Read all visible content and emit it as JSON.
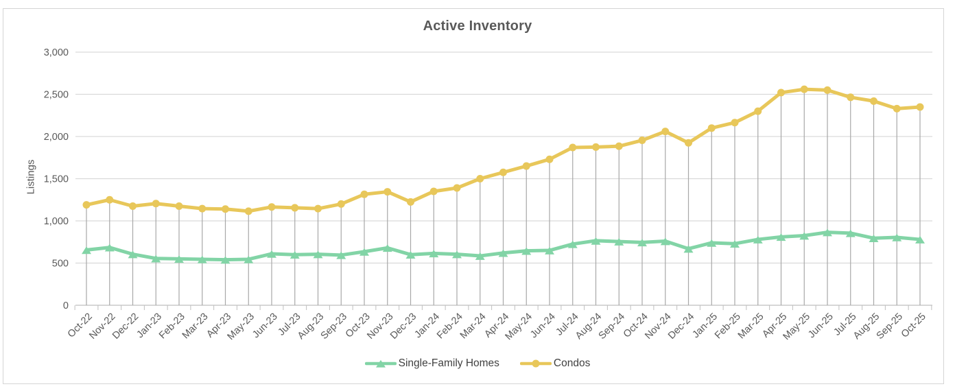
{
  "title": "Active Inventory",
  "colors": {
    "single_family": "#82d4a6",
    "condos": "#e8c75a",
    "gridline": "#d9d9d9",
    "axis_line": "#bfbfbf",
    "drop_line": "#a8a8a8",
    "tick_text": "#595959",
    "title_text": "#595959",
    "legend_text": "#404040",
    "frame_border": "#d4d4d4"
  },
  "chart_data": {
    "type": "line",
    "title": "Active Inventory",
    "xlabel": "",
    "ylabel": "Listings",
    "ylim": [
      0,
      3000
    ],
    "y_ticks": [
      0,
      500,
      1000,
      1500,
      2000,
      2500,
      3000
    ],
    "y_tick_labels": [
      "0",
      "500",
      "1,000",
      "1,500",
      "2,000",
      "2,500",
      "3,000"
    ],
    "grid": "horizontal",
    "drop_lines": true,
    "legend_position": "bottom",
    "categories": [
      "Oct-22",
      "Nov-22",
      "Dec-22",
      "Jan-23",
      "Feb-23",
      "Mar-23",
      "Apr-23",
      "May-23",
      "Jun-23",
      "Jul-23",
      "Aug-23",
      "Sep-23",
      "Oct-23",
      "Nov-23",
      "Dec-23",
      "Jan-24",
      "Feb-24",
      "Mar-24",
      "Apr-24",
      "May-24",
      "Jun-24",
      "Jul-24",
      "Aug-24",
      "Sep-24",
      "Oct-24",
      "Nov-24",
      "Dec-24",
      "Jan-25",
      "Feb-25",
      "Mar-25",
      "Apr-25",
      "May-25",
      "Jun-25",
      "Jul-25",
      "Aug-25",
      "Sep-25",
      "Oct-25"
    ],
    "series": [
      {
        "name": "Single-Family Homes",
        "marker": "triangle",
        "color": "#82d4a6",
        "values": [
          655,
          685,
          605,
          555,
          550,
          545,
          540,
          545,
          610,
          600,
          605,
          595,
          635,
          680,
          600,
          615,
          605,
          585,
          620,
          645,
          650,
          725,
          765,
          755,
          745,
          760,
          670,
          740,
          730,
          780,
          810,
          825,
          865,
          855,
          795,
          805,
          780
        ]
      },
      {
        "name": "Condos",
        "marker": "circle",
        "color": "#e8c75a",
        "values": [
          1190,
          1250,
          1175,
          1205,
          1175,
          1145,
          1140,
          1115,
          1165,
          1155,
          1145,
          1200,
          1315,
          1345,
          1225,
          1350,
          1390,
          1500,
          1575,
          1650,
          1730,
          1870,
          1875,
          1885,
          1955,
          2060,
          1925,
          2100,
          2165,
          2300,
          2520,
          2560,
          2550,
          2465,
          2420,
          2330,
          2350
        ]
      }
    ]
  }
}
